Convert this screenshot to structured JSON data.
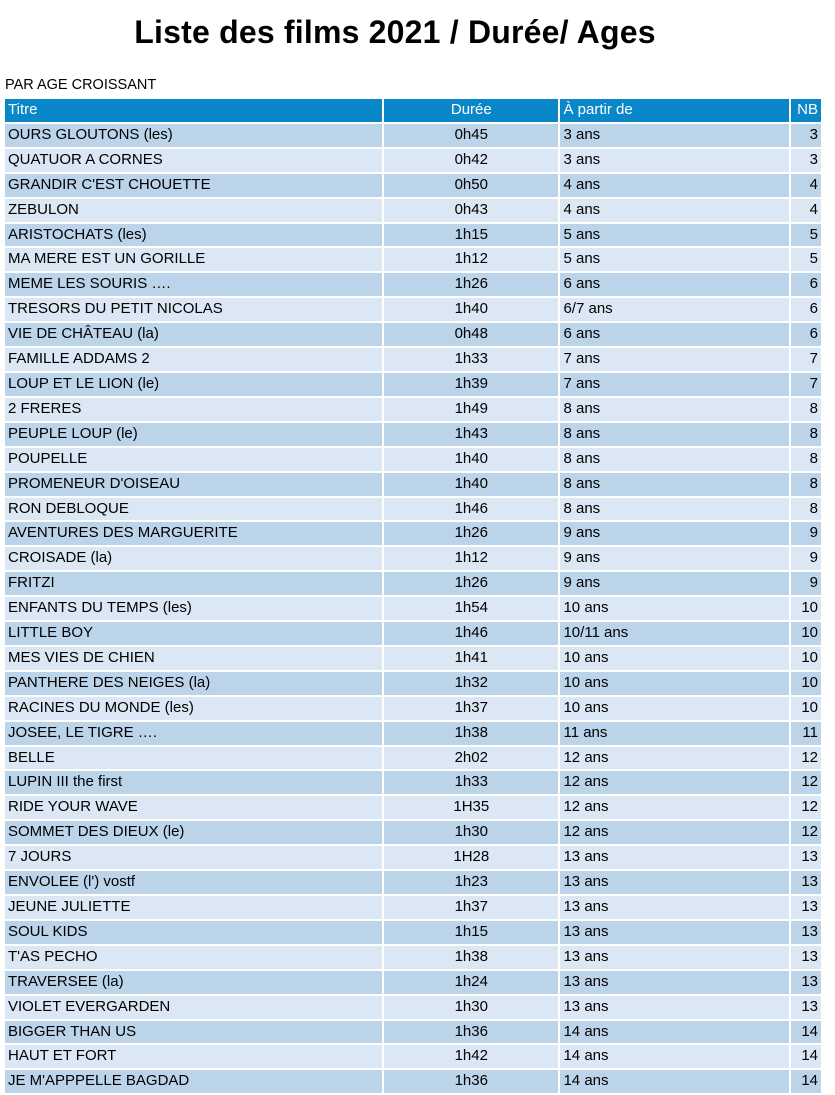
{
  "page": {
    "title": "Liste des films 2021 / Durée/ Ages",
    "subtitle": "PAR AGE CROISSANT"
  },
  "table": {
    "headers": [
      "Titre",
      "Durée",
      "À partir de",
      "NB"
    ],
    "rows": [
      [
        "OURS GLOUTONS (les)",
        "0h45",
        "3 ans",
        "3"
      ],
      [
        "QUATUOR A CORNES",
        "0h42",
        "3 ans",
        "3"
      ],
      [
        "GRANDIR C'EST CHOUETTE",
        "0h50",
        "4 ans",
        "4"
      ],
      [
        "ZEBULON",
        "0h43",
        "4 ans",
        "4"
      ],
      [
        "ARISTOCHATS (les)",
        "1h15",
        "5 ans",
        "5"
      ],
      [
        "MA MERE EST UN GORILLE",
        "1h12",
        "5 ans",
        "5"
      ],
      [
        "MEME LES SOURIS ….",
        "1h26",
        "6 ans",
        "6"
      ],
      [
        "TRESORS DU PETIT NICOLAS",
        "1h40",
        "6/7 ans",
        "6"
      ],
      [
        "VIE DE CHÂTEAU (la)",
        "0h48",
        "6 ans",
        "6"
      ],
      [
        "FAMILLE ADDAMS 2",
        "1h33",
        "7 ans",
        "7"
      ],
      [
        "LOUP ET LE LION (le)",
        "1h39",
        "7 ans",
        "7"
      ],
      [
        "2 FRERES",
        "1h49",
        "8 ans",
        "8"
      ],
      [
        "PEUPLE LOUP (le)",
        "1h43",
        "8 ans",
        "8"
      ],
      [
        "POUPELLE",
        "1h40",
        "8 ans",
        "8"
      ],
      [
        "PROMENEUR D'OISEAU",
        "1h40",
        "8 ans",
        "8"
      ],
      [
        "RON DEBLOQUE",
        "1h46",
        "8 ans",
        "8"
      ],
      [
        "AVENTURES DES MARGUERITE",
        "1h26",
        "9 ans",
        "9"
      ],
      [
        "CROISADE (la)",
        "1h12",
        "9 ans",
        "9"
      ],
      [
        "FRITZI",
        "1h26",
        "9 ans",
        "9"
      ],
      [
        "ENFANTS DU TEMPS (les)",
        "1h54",
        "10 ans",
        "10"
      ],
      [
        "LITTLE BOY",
        "1h46",
        "10/11 ans",
        "10"
      ],
      [
        "MES VIES DE CHIEN",
        "1h41",
        "10 ans",
        "10"
      ],
      [
        "PANTHERE DES NEIGES (la)",
        "1h32",
        "10 ans",
        "10"
      ],
      [
        "RACINES DU MONDE (les)",
        "1h37",
        "10 ans",
        "10"
      ],
      [
        "JOSEE, LE TIGRE ….",
        "1h38",
        "11 ans",
        "11"
      ],
      [
        "BELLE",
        "2h02",
        "12 ans",
        "12"
      ],
      [
        "LUPIN III the first",
        "1h33",
        "12 ans",
        "12"
      ],
      [
        "RIDE YOUR WAVE",
        "1H35",
        "12 ans",
        "12"
      ],
      [
        "SOMMET DES DIEUX (le)",
        "1h30",
        "12 ans",
        "12"
      ],
      [
        "7 JOURS",
        "1H28",
        "13 ans",
        "13"
      ],
      [
        "ENVOLEE (l') vostf",
        "1h23",
        "13 ans",
        "13"
      ],
      [
        "JEUNE JULIETTE",
        "1h37",
        "13 ans",
        "13"
      ],
      [
        "SOUL KIDS",
        "1h15",
        "13 ans",
        "13"
      ],
      [
        "T'AS PECHO",
        "1h38",
        "13 ans",
        "13"
      ],
      [
        "TRAVERSEE (la)",
        "1h24",
        "13 ans",
        "13"
      ],
      [
        "VIOLET EVERGARDEN",
        "1h30",
        "13 ans",
        "13"
      ],
      [
        "BIGGER THAN US",
        "1h36",
        "14  ans",
        "14"
      ],
      [
        "HAUT ET FORT",
        "1h42",
        "14 ans",
        "14"
      ],
      [
        "JE M'APPPELLE BAGDAD",
        "1h36",
        "14 ans",
        "14"
      ]
    ]
  }
}
